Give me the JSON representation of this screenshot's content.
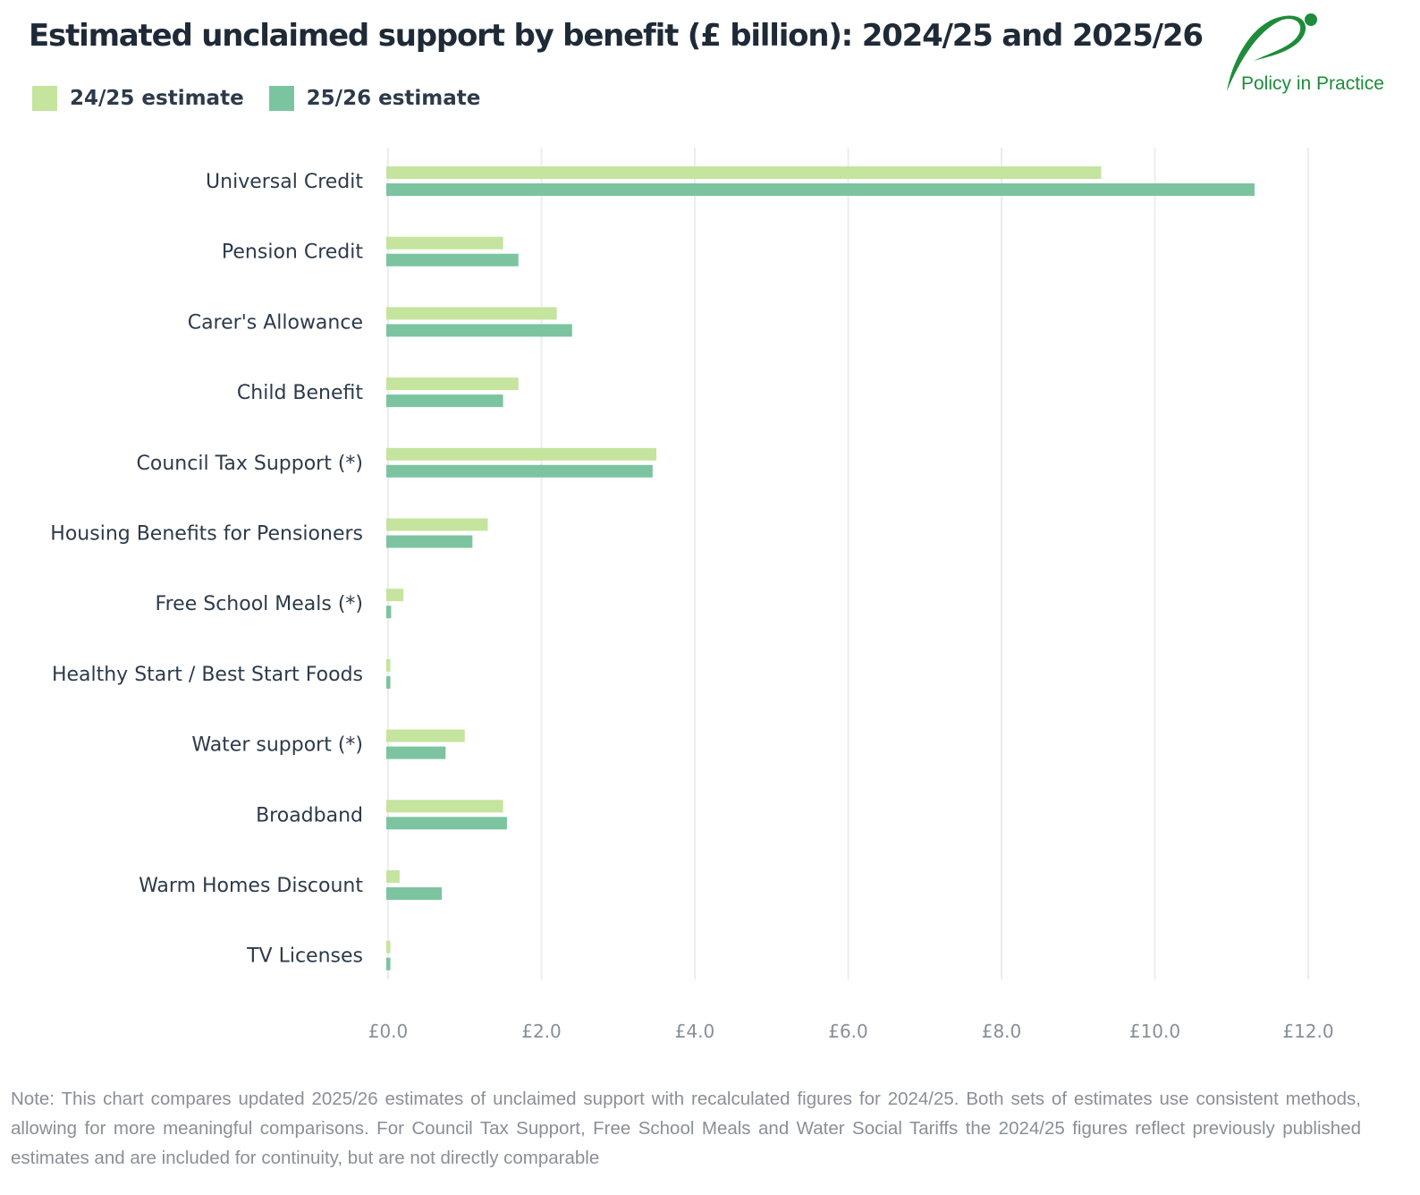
{
  "header": {
    "title": "Estimated unclaimed support by benefit (£ billion): 2024/25 and 2025/26"
  },
  "logo": {
    "text": "Policy in Practice",
    "color": "#1e8c3a"
  },
  "note": "Note: This chart compares updated 2025/26 estimates of unclaimed support with recalculated figures for 2024/25. Both sets of estimates use consistent methods, allowing for more meaningful comparisons. For Council Tax Support, Free School Meals and Water Social Tariffs the 2024/25 figures reflect previously published estimates and are included for continuity, but are not directly comparable",
  "chart_data": {
    "type": "bar",
    "orientation": "horizontal",
    "title": "Estimated unclaimed support by benefit (£ billion): 2024/25 and 2025/26",
    "categories": [
      "Universal Credit",
      "Pension Credit",
      "Carer's Allowance",
      "Child Benefit",
      "Council Tax Support (*)",
      "Housing Benefits for Pensioners",
      "Free School Meals (*)",
      "Healthy Start / Best Start Foods",
      "Water support (*)",
      "Broadband",
      "Warm Homes Discount",
      "TV Licenses"
    ],
    "series": [
      {
        "name": "24/25 estimate",
        "color": "#c5e49e",
        "values": [
          9.3,
          1.5,
          2.2,
          1.7,
          3.5,
          1.3,
          0.2,
          0.03,
          1.0,
          1.5,
          0.15,
          0.03
        ]
      },
      {
        "name": "25/26 estimate",
        "color": "#7cc4a0",
        "values": [
          11.3,
          1.7,
          2.4,
          1.5,
          3.45,
          1.1,
          0.04,
          0.03,
          0.75,
          1.55,
          0.7,
          0.03
        ]
      }
    ],
    "xlim": [
      0,
      12
    ],
    "xticks": [
      0,
      2,
      4,
      6,
      8,
      10,
      12
    ],
    "xtick_labels": [
      "£0.0",
      "£2.0",
      "£4.0",
      "£6.0",
      "£8.0",
      "£10.0",
      "£12.0"
    ],
    "grid": "vertical",
    "legend": "top-left"
  }
}
